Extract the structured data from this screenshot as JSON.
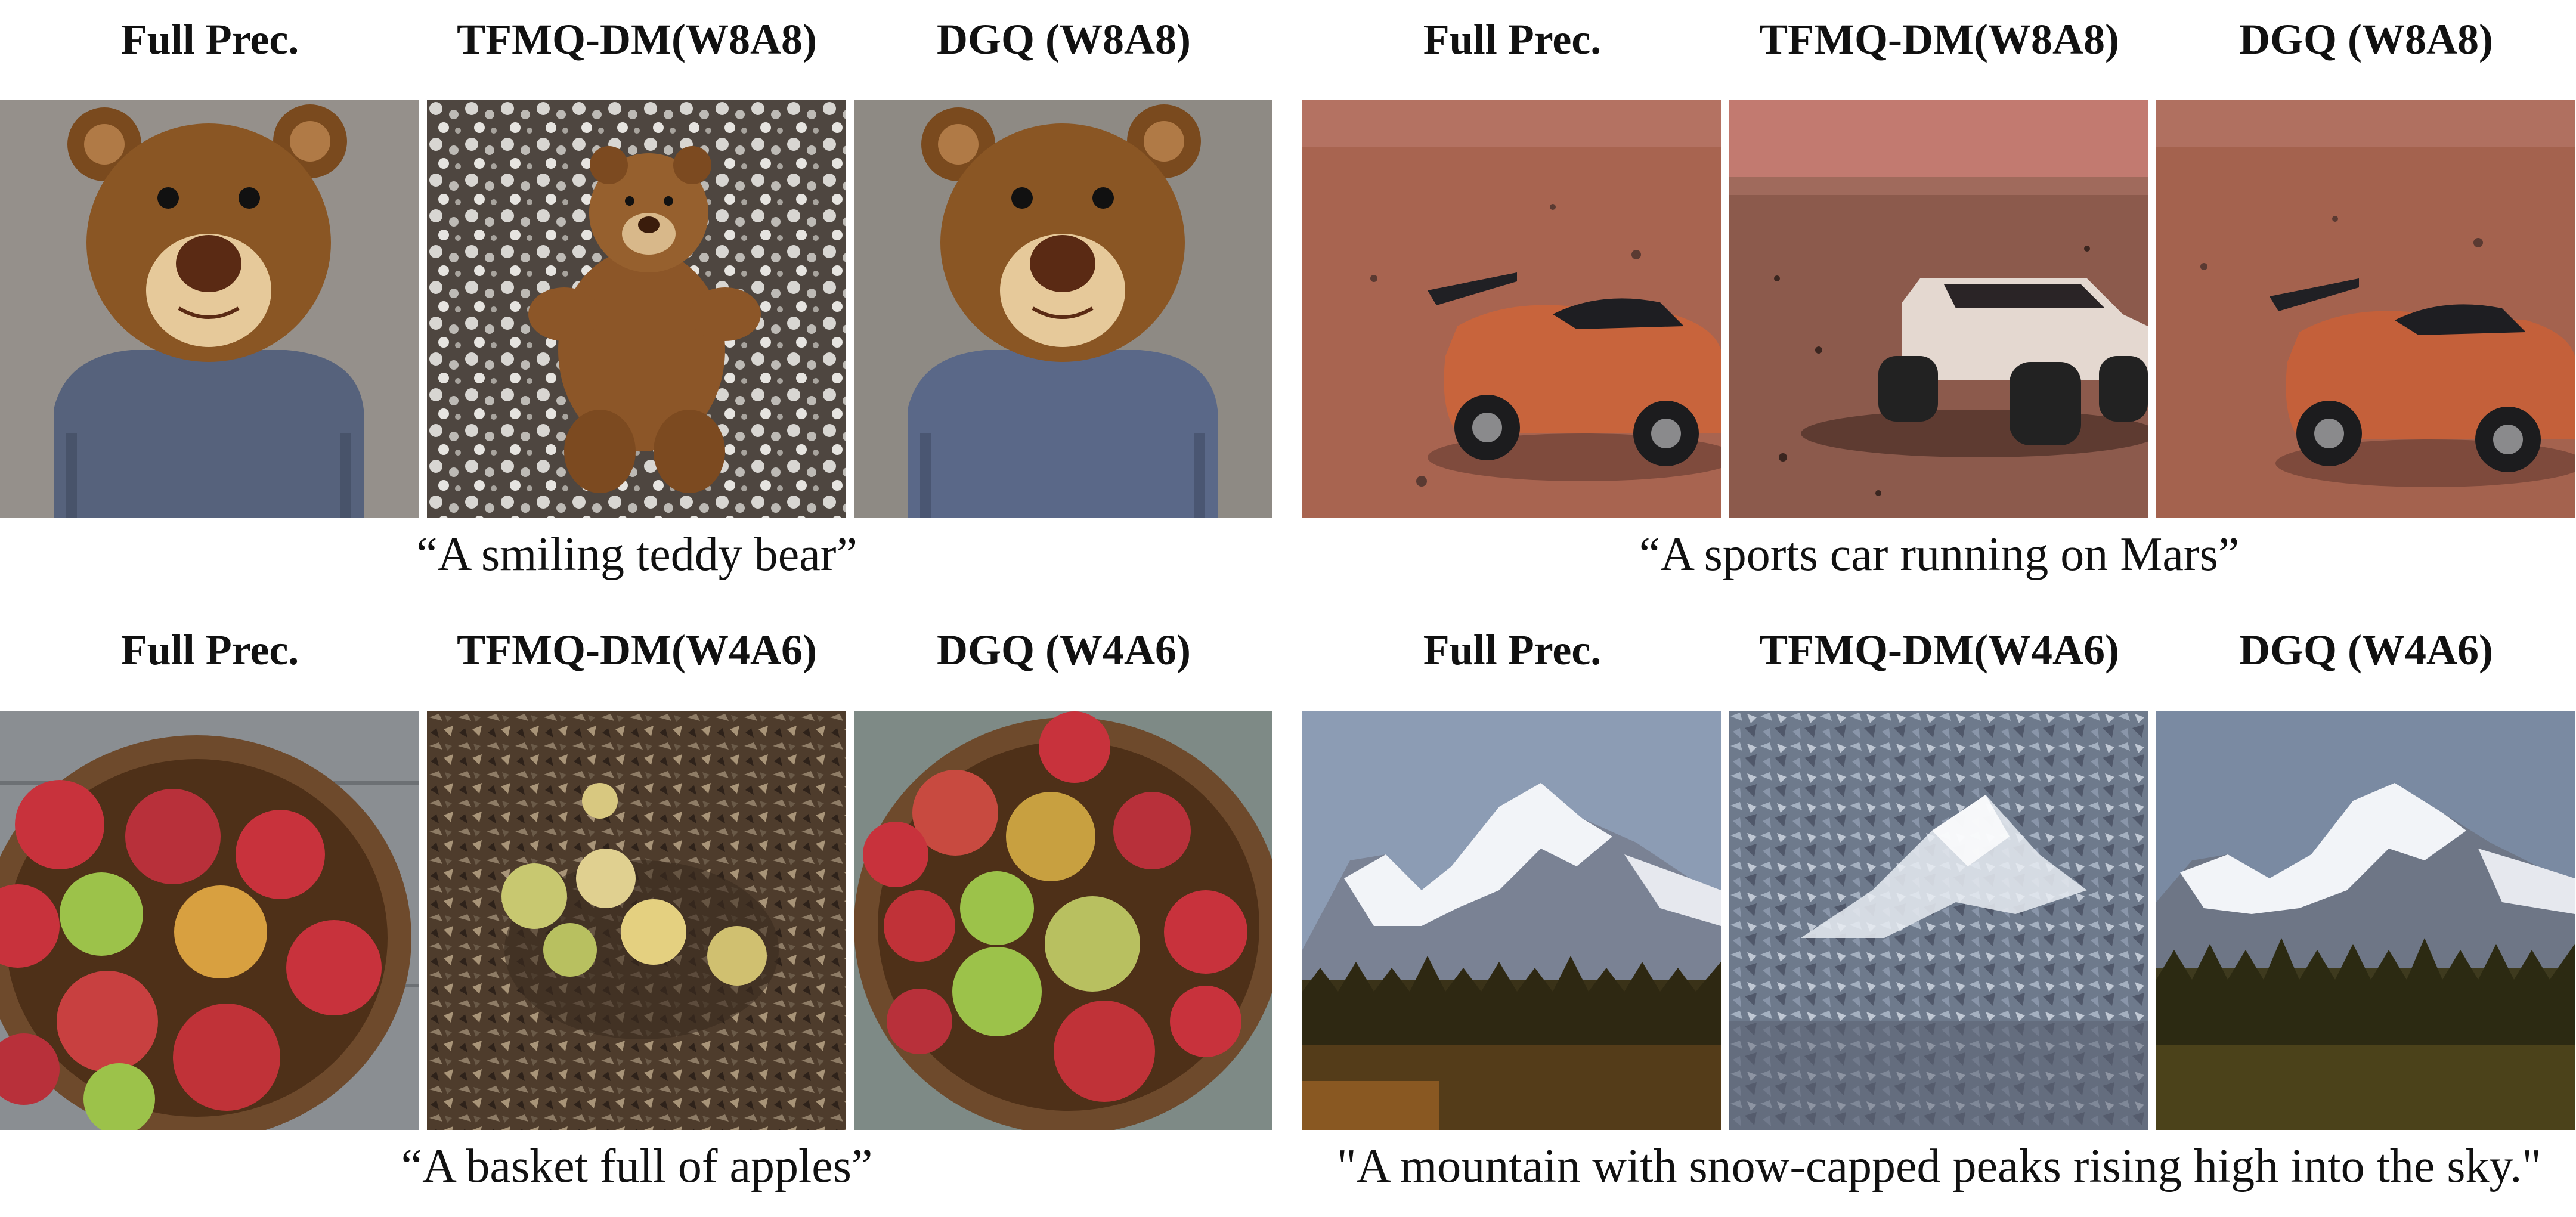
{
  "groups": [
    {
      "headers": [
        "Full Prec.",
        "TFMQ-DM(W8A8)",
        "DGQ (W8A8)"
      ],
      "caption": "“A smiling teddy bear”",
      "panel_icons": [
        "teddy-bear-image",
        "teddy-bear-noisy-image",
        "teddy-bear-image"
      ]
    },
    {
      "headers": [
        "Full Prec.",
        "TFMQ-DM(W8A8)",
        "DGQ (W8A8)"
      ],
      "caption": "“A sports car running on Mars”",
      "panel_icons": [
        "mars-car-image",
        "mars-buggy-image",
        "mars-car-image"
      ]
    },
    {
      "headers": [
        "Full Prec.",
        "TFMQ-DM(W4A6)",
        "DGQ (W4A6)"
      ],
      "caption": "“A basket full of apples”",
      "panel_icons": [
        "apple-basket-image",
        "apple-basket-noisy-image",
        "apple-basket-image"
      ]
    },
    {
      "headers": [
        "Full Prec.",
        "TFMQ-DM(W4A6)",
        "DGQ (W4A6)"
      ],
      "caption": "\"A mountain with snow-capped peaks rising high into the sky.\"",
      "panel_icons": [
        "mountain-image",
        "mountain-noisy-image",
        "mountain-image"
      ]
    }
  ],
  "colors": {
    "bear_fur": "#8a5624",
    "bear_muzzle": "#e6c99a",
    "bear_shirt": "#56627c",
    "mars_ground": "#a86450",
    "mars_sky": "#c77e70",
    "car_body": "#c8643c",
    "apple_red": "#c8323c",
    "apple_green": "#9cc24a",
    "basket": "#6e4a2c",
    "snow": "#f2f4f8",
    "rock": "#7a8294",
    "forest": "#3a3218",
    "sky": "#8c9cb4"
  }
}
